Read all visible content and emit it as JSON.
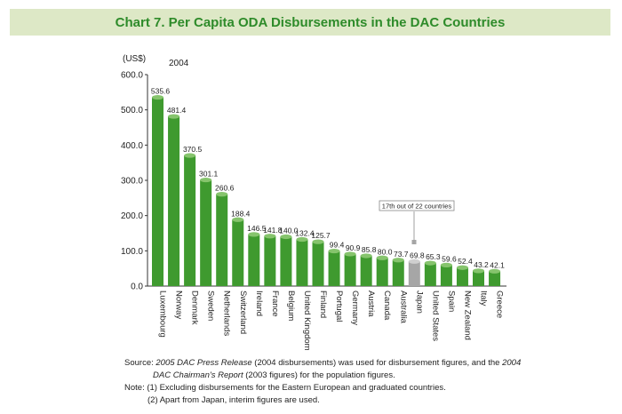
{
  "header": {
    "title": "Chart 7. Per Capita ODA Disbursements in the DAC Countries"
  },
  "colors": {
    "accent": "#2e8b2a",
    "bar": "#3f9a2f",
    "bar_top": "#86c46d",
    "highlight": "#a6a6a6",
    "band": "#dde8c6"
  },
  "chart_data": {
    "type": "bar",
    "title": "",
    "unit_label": "(US$)",
    "year_label": "2004",
    "xlabel": "",
    "ylabel": "",
    "ylim": [
      0,
      600
    ],
    "yticks": [
      "0.0",
      "100.0",
      "200.0",
      "300.0",
      "400.0",
      "500.0",
      "600.0"
    ],
    "grid": false,
    "categories": [
      "Luxembourg",
      "Norway",
      "Denmark",
      "Sweden",
      "Netherlands",
      "Switzerland",
      "Ireland",
      "France",
      "Belgium",
      "United Kingdom",
      "Finland",
      "Portugal",
      "Germany",
      "Austria",
      "Canada",
      "Australia",
      "Japan",
      "United States",
      "Spain",
      "New Zealand",
      "Italy",
      "Greece"
    ],
    "values": [
      535.6,
      481.4,
      370.5,
      301.1,
      260.6,
      188.4,
      146.5,
      141.8,
      140.0,
      132.4,
      125.7,
      99.4,
      90.9,
      85.8,
      80.0,
      73.7,
      69.8,
      65.3,
      59.6,
      52.4,
      43.2,
      42.1
    ],
    "value_labels": [
      "535.6",
      "481.4",
      "370.5",
      "301.1",
      "260.6",
      "188.4",
      "146.5",
      "141.8",
      "140.0",
      "132.4",
      "125.7",
      "99.4",
      "90.9",
      "85.8",
      "80.0",
      "73.7",
      "69.8",
      "65.3",
      "59.6",
      "52.4",
      "43.2",
      "42.1"
    ],
    "highlight_category": "Japan",
    "annotation": "17th out of 22 countries"
  },
  "notes": {
    "source_prefix": "Source: ",
    "source_italic1": "2005 DAC Press Release",
    "source_mid": " (2004 disbursements) was used for disbursement figures, and the ",
    "source_italic2_a": "2004",
    "source_italic2_b": "DAC Chairman's Report",
    "source_end": " (2003 figures) for the population figures.",
    "note1": "Note: (1) Excluding disbursements for the Eastern European and graduated countries.",
    "note2": "(2) Apart from Japan, interim figures are used."
  }
}
